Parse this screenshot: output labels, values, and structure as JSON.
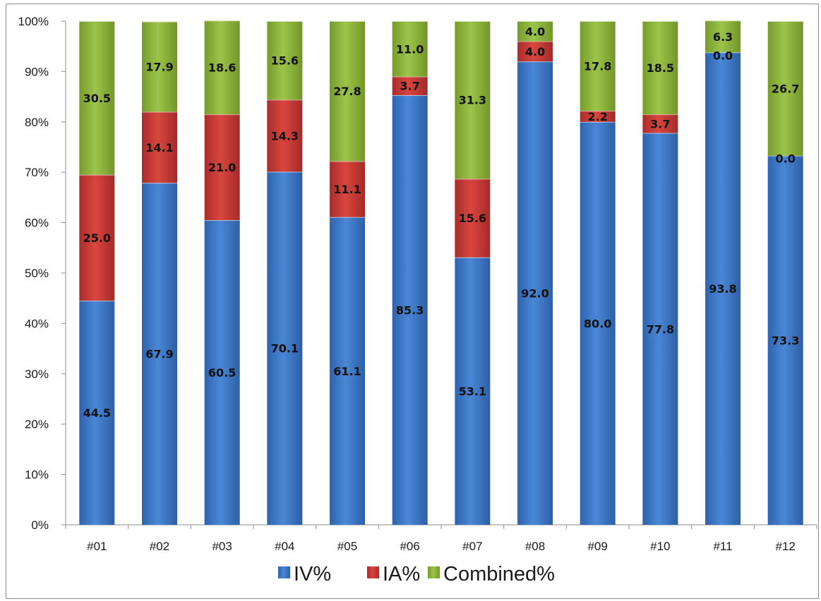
{
  "chart_data": {
    "type": "bar",
    "stacked": true,
    "percent_stacked": true,
    "categories": [
      "#01",
      "#02",
      "#03",
      "#04",
      "#05",
      "#06",
      "#07",
      "#08",
      "#09",
      "#10",
      "#11",
      "#12"
    ],
    "series": [
      {
        "name": "IV%",
        "color": "#3d78c9",
        "values": [
          44.5,
          67.9,
          60.5,
          70.1,
          61.1,
          85.3,
          53.1,
          92.0,
          80.0,
          77.8,
          93.8,
          73.3
        ]
      },
      {
        "name": "IA%",
        "color": "#c43b38",
        "values": [
          25.0,
          14.1,
          21.0,
          14.3,
          11.1,
          3.7,
          15.6,
          4.0,
          2.2,
          3.7,
          0.0,
          0.0
        ]
      },
      {
        "name": "Combined%",
        "color": "#8db33d",
        "values": [
          30.5,
          17.9,
          18.6,
          15.6,
          27.8,
          11.0,
          31.3,
          4.0,
          17.8,
          18.5,
          6.3,
          26.7
        ]
      }
    ],
    "data_labels": [
      [
        "44.5",
        "67.9",
        "60.5",
        "70.1",
        "61.1",
        "85.3",
        "53.1",
        "92.0",
        "80.0",
        "77.8",
        "93.8",
        "73.3"
      ],
      [
        "25.0",
        "14.1",
        "21.0",
        "14.3",
        "11.1",
        "3.7",
        "15.6",
        "4.0",
        "2.2",
        "3.7",
        "0.0",
        "0.0"
      ],
      [
        "30.5",
        "17.9",
        "18.6",
        "15.6",
        "27.8",
        "11.0",
        "31.3",
        "4.0",
        "17.8",
        "18.5",
        "6.3",
        "26.7"
      ]
    ],
    "y_ticks": [
      "0%",
      "10%",
      "20%",
      "30%",
      "40%",
      "50%",
      "60%",
      "70%",
      "80%",
      "90%",
      "100%"
    ],
    "ylim": [
      0,
      100
    ],
    "title": "",
    "xlabel": "",
    "ylabel": "",
    "grid": false,
    "legend": {
      "position": "bottom",
      "entries": [
        "IV%",
        "IA%",
        "Combined%"
      ]
    }
  }
}
